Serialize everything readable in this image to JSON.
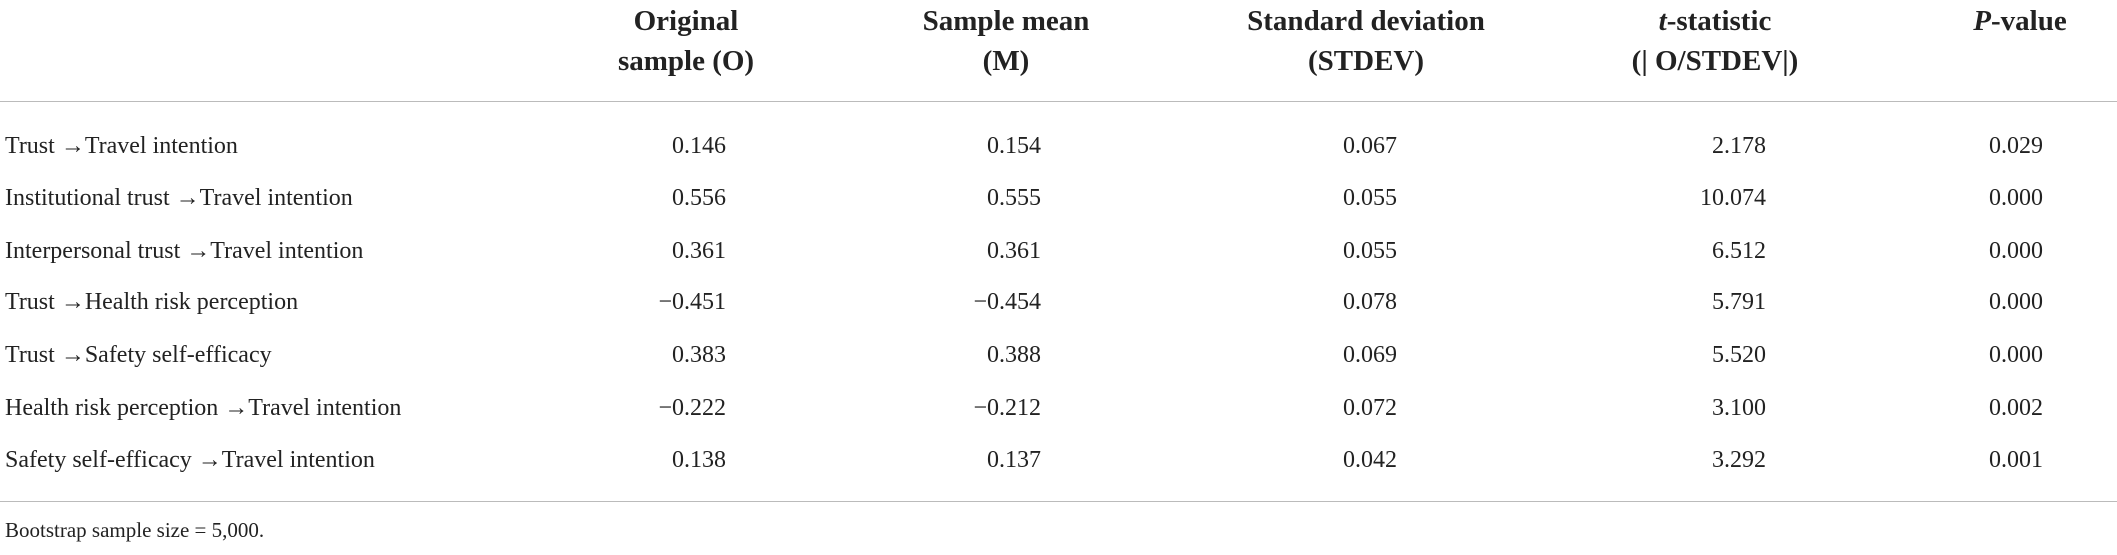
{
  "table": {
    "columns": [
      [
        [
          {
            "text": "Original"
          }
        ],
        [
          {
            "text": "sample (O)"
          }
        ]
      ],
      [
        [
          {
            "text": "Sample mean"
          }
        ],
        [
          {
            "text": "(M)"
          }
        ]
      ],
      [
        [
          {
            "text": "Standard deviation"
          }
        ],
        [
          {
            "text": "(STDEV)"
          }
        ]
      ],
      [
        [
          {
            "text": "t",
            "italic": true
          },
          {
            "text": "-statistic"
          }
        ],
        [
          {
            "text": "(| O/STDEV|)"
          }
        ]
      ],
      [
        [
          {
            "text": "P",
            "italic": true
          },
          {
            "text": "-value"
          }
        ]
      ]
    ],
    "rows": [
      [
        "Trust →Travel intention",
        "0.146",
        "0.154",
        "0.067",
        "2.178",
        "0.029"
      ],
      [
        "Institutional trust →Travel intention",
        "0.556",
        "0.555",
        "0.055",
        "10.074",
        "0.000"
      ],
      [
        "Interpersonal trust →Travel intention",
        "0.361",
        "0.361",
        "0.055",
        "6.512",
        "0.000"
      ],
      [
        "Trust →Health risk perception",
        "−0.451",
        "−0.454",
        "0.078",
        "5.791",
        "0.000"
      ],
      [
        "Trust →Safety self-efficacy",
        "0.383",
        "0.388",
        "0.069",
        "5.520",
        "0.000"
      ],
      [
        "Health risk perception →Travel intention",
        "−0.222",
        "−0.212",
        "0.072",
        "3.100",
        "0.002"
      ],
      [
        "Safety self-efficacy →Travel intention",
        "0.138",
        "0.137",
        "0.042",
        "3.292",
        "0.001"
      ]
    ],
    "footnote": "Bootstrap sample size = 5,000."
  }
}
